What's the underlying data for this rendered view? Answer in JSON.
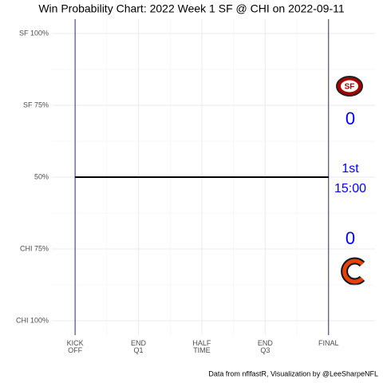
{
  "chart_data": {
    "type": "line",
    "title": "Win Probability Chart: 2022 Week 1 SF @ CHI on 2022-09-11",
    "caption": "Data from nflfastR, Visualization by @LeeSharpeNFL",
    "x": [
      0,
      3600
    ],
    "series": [
      {
        "name": "SF win probability",
        "color": "#000000",
        "values": [
          50,
          50
        ]
      }
    ],
    "xlim": [
      -330,
      4260
    ],
    "xticks": [
      {
        "value": 0,
        "label": "KICK\nOFF"
      },
      {
        "value": 900,
        "label": "END\nQ1"
      },
      {
        "value": 1800,
        "label": "HALF\nTIME"
      },
      {
        "value": 2700,
        "label": "END\nQ3"
      },
      {
        "value": 3600,
        "label": "FINAL"
      }
    ],
    "ylim": [
      -5,
      105
    ],
    "yticks": [
      {
        "value": 0,
        "label": "CHI 100%"
      },
      {
        "value": 25,
        "label": "CHI 75%"
      },
      {
        "value": 50,
        "label": "50%"
      },
      {
        "value": 75,
        "label": "SF 75%"
      },
      {
        "value": 100,
        "label": "SF 100%"
      }
    ],
    "vlines": [
      0,
      3600
    ],
    "vline_color": "#2a2a8a",
    "grid": true,
    "annotations": {
      "sf_score": 0,
      "chi_score": 0,
      "quarter": "1st",
      "clock": "15:00",
      "color": "#0000ff"
    }
  }
}
